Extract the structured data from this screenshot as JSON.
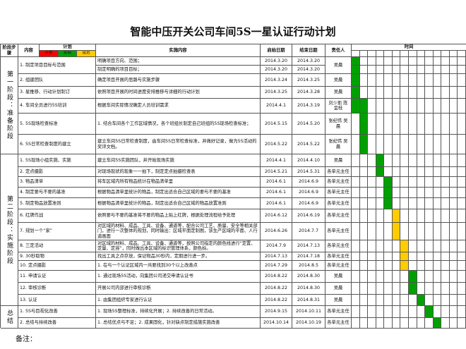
{
  "title": "智能中压开关公司车间5S一星认证行动计划",
  "header": {
    "stage": "阶段步骤",
    "content": "内容",
    "plan": "计划",
    "legend": [
      "计划",
      "实际",
      "延迟"
    ],
    "task": "实施内容",
    "start": "启始日期",
    "end": "结束日期",
    "owner": "责任人",
    "time": "时间"
  },
  "stages": [
    {
      "label": "第一阶段：准备阶段",
      "rows": [
        {
          "step": "1. 制定项目目标与范围",
          "items": [
            {
              "task": "明确项目方向、范围；",
              "start": "2014.3.20",
              "end": "2014.3.20"
            },
            {
              "task": "制定明确的项目目标；",
              "start": "2014.3.20",
              "end": "2014.3.20"
            }
          ],
          "owner": "吴晨"
        },
        {
          "step": "2. 组建团队",
          "items": [
            {
              "task": "确定项目开展的思路与实施步骤",
              "start": "2014.3.24",
              "end": "2014.3.25"
            }
          ],
          "owner": "吴晨"
        },
        {
          "step": "3. 星推移、行动计划制订",
          "items": [
            {
              "task": "依照项目开展的时间进度安排推移与详细的行动计划",
              "start": "2014.3.25",
              "end": "2014.3.28"
            }
          ],
          "owner": "吴晨"
        },
        {
          "step": "4. 车间全员进行5S培训",
          "items": [
            {
              "task": "根据车间实际情况确定人员培训需求",
              "start": "2014.4.1",
              "end": "2014.3.19"
            }
          ],
          "owner": "刘少斯 陈金桂"
        },
        {
          "step": "5. 5S现场检查标准",
          "items": [
            {
              "task": "1. 结合车间各个工作区域情况，各个班组长制定自己班组的5S现场检查标准；",
              "start": "2014.5.15",
              "end": "2014.5.20"
            }
          ],
          "owner": "张纪伟 吴晨"
        },
        {
          "step": "6. 5S日常检查制度的建立",
          "items": [
            {
              "task": "建立车间5S日常检查制度，由车间5S日常检查标准，并做好记录，做为5S活动的奖评文档。",
              "start": "2014.5.22",
              "end": "2014.5.22"
            }
          ],
          "owner": "张纪伟 吴晨"
        }
      ]
    },
    {
      "label": "第二阶段：实施阶段",
      "rows": [
        {
          "step": "1. 5S现场小组实施、实施",
          "items": [
            {
              "task": "建立车间5S实施团队，并开始现场实施",
              "start": "2014.4.1",
              "end": "2014.4.10"
            }
          ],
          "owner": "吴晨"
        },
        {
          "step": "2. 定点摄影",
          "items": [
            {
              "task": "对现场现状的现象一一拍下，制定定点拍摄检查表",
              "start": "2014.5.21",
              "end": "2014.5.31"
            }
          ],
          "owner": "各单元主任"
        },
        {
          "step": "3. 物品清单",
          "items": [
            {
              "task": "将车区域内所有物品统计在物品清单里",
              "start": "2014.6.1",
              "end": "2014.6.9"
            }
          ],
          "owner": "各单元主任"
        },
        {
          "step": "4. 制定要与不要的基准",
          "items": [
            {
              "task": "根据物品清单里统计的物品，制定出适合自己区域的要与不要的基准",
              "start": "2014.6.1",
              "end": "2014.6.9"
            }
          ],
          "owner": "各单元主任"
        },
        {
          "step": "5. 制定物品放置准则",
          "items": [
            {
              "task": "根据物品清单里统计的物品，制定出适合自己区域的物品放置准则",
              "start": "2014.6.1",
              "end": "2014.6.9"
            }
          ],
          "owner": "各单元主任"
        },
        {
          "step": "6. 红牌作战",
          "items": [
            {
              "task": "依照要与不要的基准将不要的物品上贴上红牌，根据处理流程给予处理",
              "start": "2014.6.12",
              "end": "2014.6.19"
            }
          ],
          "owner": "各单元主任"
        },
        {
          "step": "7. 规划一个“家”",
          "items": [
            {
              "task": "对区域的材料、成品、工具、设备、通道等，配合公司工艺、质量、安全等相关部门，进行一次整体的规划，同时输出：区域平面定制图，该生产区域的平面、人行道画面",
              "start": "2014.6.26",
              "end": "2014.7.7"
            }
          ],
          "owner": "各单元主任"
        },
        {
          "step": "8. 三定活动",
          "items": [
            {
              "task": "对区域的材料、成品、工具、设备、通道等，按照公司指定的颜色线进行“定置、定量、定容”，同时做出本区域的标识管理体系，颜色标。",
              "start": "2014.7.9",
              "end": "2014.7.13"
            }
          ],
          "owner": "各单元主任"
        },
        {
          "step": "9. 30秒取物",
          "items": [
            {
              "task": "找出工具之点存放，保证物品30秒内，定期进行进一步。",
              "start": "2014.7.13",
              "end": "2014.7.18"
            }
          ],
          "owner": "各单元主任"
        },
        {
          "step": "10. 定点摄影",
          "items": [
            {
              "task": "1. 在与一个认证区域内一共要找到30个以上改善点",
              "start": "2014.7.29",
              "end": "2014.8.5"
            }
          ],
          "owner": "各单元主任"
        },
        {
          "step": "11. 申请认证",
          "items": [
            {
              "task": "1. 通过现场5S活动，向集团公司递交申请认证书",
              "start": "2014.8.22",
              "end": "2014.8.30"
            }
          ],
          "owner": "吴晨"
        },
        {
          "step": "12. 审核诊断",
          "items": [
            {
              "task": "开展公司内部进行审核诊断",
              "start": "2014.8.22",
              "end": "2014.8.30"
            }
          ],
          "owner": "吴晨"
        },
        {
          "step": "13. 认证",
          "items": [
            {
              "task": "1. 由集团组织专家进行认证",
              "start": "2014.8.22",
              "end": "2014.8.31"
            }
          ],
          "owner": "吴晨"
        }
      ]
    },
    {
      "label": "总结",
      "rows": [
        {
          "step": "1. 5S与目视化改善",
          "items": [
            {
              "task": "1. 现场5S整理标准，持续化开展；2. 持续改善的日常活动。",
              "start": "2014.9.15",
              "end": "2014.10.11"
            }
          ],
          "owner": "各单元主任"
        },
        {
          "step": "2. 总结与持续改善",
          "items": [
            {
              "task": "1. 总结优点与不足；2. 成果固化，针对缺点制定措施实施改善",
              "start": "2014.10.14",
              "end": "2014.10.19"
            }
          ],
          "owner": "各单元主任"
        }
      ]
    }
  ],
  "note": "备注："
}
